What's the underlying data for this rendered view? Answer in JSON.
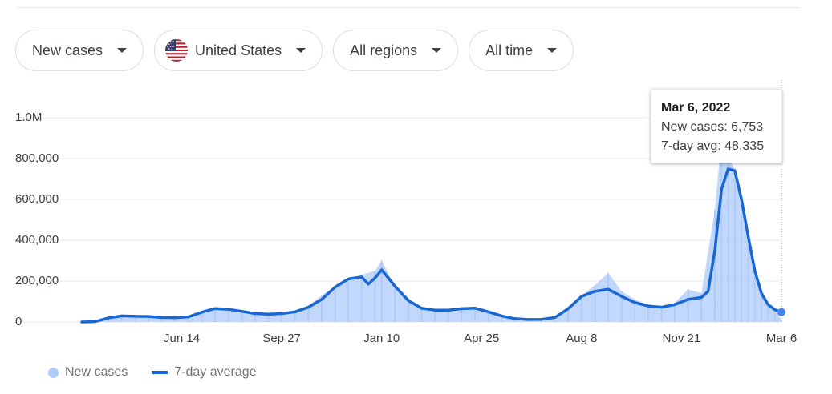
{
  "filters": {
    "metric": "New cases",
    "country": "United States",
    "region": "All regions",
    "period": "All time"
  },
  "colors": {
    "bars": "#aecbfa",
    "line": "#1967d2",
    "grid": "#e8eaed",
    "text": "#3c4043"
  },
  "icons": {
    "country_flag": "us-flag-icon",
    "dropdown": "caret-down-icon"
  },
  "tooltip": {
    "date": "Mar 6, 2022",
    "new_cases": "New cases: 6,753",
    "avg": "7-day avg: 48,335"
  },
  "legend": {
    "bars": "New cases",
    "line": "7-day average"
  },
  "chart_data": {
    "type": "bar",
    "title": "",
    "xlabel": "",
    "ylabel": "",
    "x_start": "2020-03-01",
    "x_end": "2022-03-06",
    "x_ticks": [
      {
        "label": "Jun 14",
        "date": "2020-06-14"
      },
      {
        "label": "Sep 27",
        "date": "2020-09-27"
      },
      {
        "label": "Jan 10",
        "date": "2021-01-10"
      },
      {
        "label": "Apr 25",
        "date": "2021-04-25"
      },
      {
        "label": "Aug 8",
        "date": "2021-08-08"
      },
      {
        "label": "Nov 21",
        "date": "2021-11-21"
      },
      {
        "label": "Mar 6",
        "date": "2022-03-06"
      }
    ],
    "y_ticks": [
      {
        "label": "0",
        "value": 0
      },
      {
        "label": "200,000",
        "value": 200000
      },
      {
        "label": "400,000",
        "value": 400000
      },
      {
        "label": "600,000",
        "value": 600000
      },
      {
        "label": "800,000",
        "value": 800000
      },
      {
        "label": "1.0M",
        "value": 1000000
      }
    ],
    "ylim": [
      0,
      1000000
    ],
    "grid": true,
    "legend_position": "bottom-left",
    "series": [
      {
        "name": "New cases",
        "type": "bar",
        "points": [
          [
            "2020-03-01",
            500
          ],
          [
            "2020-03-15",
            5000
          ],
          [
            "2020-03-29",
            22000
          ],
          [
            "2020-04-12",
            30000
          ],
          [
            "2020-04-26",
            29000
          ],
          [
            "2020-05-10",
            26000
          ],
          [
            "2020-05-24",
            23000
          ],
          [
            "2020-06-07",
            22000
          ],
          [
            "2020-06-21",
            30000
          ],
          [
            "2020-07-05",
            50000
          ],
          [
            "2020-07-19",
            68000
          ],
          [
            "2020-08-02",
            60000
          ],
          [
            "2020-08-16",
            50000
          ],
          [
            "2020-08-30",
            42000
          ],
          [
            "2020-09-13",
            38000
          ],
          [
            "2020-09-27",
            42000
          ],
          [
            "2020-10-11",
            55000
          ],
          [
            "2020-10-25",
            80000
          ],
          [
            "2020-11-08",
            130000
          ],
          [
            "2020-11-22",
            175000
          ],
          [
            "2020-12-06",
            200000
          ],
          [
            "2020-12-20",
            230000
          ],
          [
            "2021-01-03",
            250000
          ],
          [
            "2021-01-10",
            300000
          ],
          [
            "2021-01-24",
            175000
          ],
          [
            "2021-02-07",
            110000
          ],
          [
            "2021-02-21",
            70000
          ],
          [
            "2021-03-07",
            60000
          ],
          [
            "2021-03-21",
            58000
          ],
          [
            "2021-04-04",
            65000
          ],
          [
            "2021-04-18",
            70000
          ],
          [
            "2021-05-02",
            50000
          ],
          [
            "2021-05-16",
            30000
          ],
          [
            "2021-05-30",
            15000
          ],
          [
            "2021-06-13",
            12000
          ],
          [
            "2021-06-27",
            13000
          ],
          [
            "2021-07-11",
            25000
          ],
          [
            "2021-07-25",
            70000
          ],
          [
            "2021-08-08",
            130000
          ],
          [
            "2021-08-22",
            180000
          ],
          [
            "2021-09-05",
            240000
          ],
          [
            "2021-09-19",
            150000
          ],
          [
            "2021-10-03",
            110000
          ],
          [
            "2021-10-17",
            85000
          ],
          [
            "2021-10-31",
            75000
          ],
          [
            "2021-11-14",
            95000
          ],
          [
            "2021-11-28",
            160000
          ],
          [
            "2021-12-12",
            140000
          ],
          [
            "2021-12-26",
            550000
          ],
          [
            "2022-01-02",
            900000
          ],
          [
            "2022-01-09",
            800000
          ],
          [
            "2022-01-16",
            750000
          ],
          [
            "2022-01-23",
            600000
          ],
          [
            "2022-01-30",
            450000
          ],
          [
            "2022-02-06",
            280000
          ],
          [
            "2022-02-13",
            150000
          ],
          [
            "2022-02-20",
            90000
          ],
          [
            "2022-02-27",
            70000
          ],
          [
            "2022-03-06",
            6753
          ]
        ]
      },
      {
        "name": "7-day average",
        "type": "line",
        "points": [
          [
            "2020-03-01",
            0
          ],
          [
            "2020-03-15",
            2000
          ],
          [
            "2020-03-29",
            20000
          ],
          [
            "2020-04-12",
            30000
          ],
          [
            "2020-04-26",
            28000
          ],
          [
            "2020-05-10",
            27000
          ],
          [
            "2020-05-24",
            22000
          ],
          [
            "2020-06-07",
            21000
          ],
          [
            "2020-06-21",
            25000
          ],
          [
            "2020-07-05",
            48000
          ],
          [
            "2020-07-19",
            66000
          ],
          [
            "2020-08-02",
            62000
          ],
          [
            "2020-08-16",
            52000
          ],
          [
            "2020-08-30",
            41000
          ],
          [
            "2020-09-13",
            38000
          ],
          [
            "2020-09-27",
            41000
          ],
          [
            "2020-10-11",
            50000
          ],
          [
            "2020-10-25",
            72000
          ],
          [
            "2020-11-08",
            110000
          ],
          [
            "2020-11-22",
            170000
          ],
          [
            "2020-12-06",
            210000
          ],
          [
            "2020-12-20",
            220000
          ],
          [
            "2020-12-27",
            185000
          ],
          [
            "2021-01-03",
            215000
          ],
          [
            "2021-01-10",
            255000
          ],
          [
            "2021-01-24",
            175000
          ],
          [
            "2021-02-07",
            105000
          ],
          [
            "2021-02-21",
            67000
          ],
          [
            "2021-03-07",
            58000
          ],
          [
            "2021-03-21",
            58000
          ],
          [
            "2021-04-04",
            65000
          ],
          [
            "2021-04-18",
            68000
          ],
          [
            "2021-05-02",
            50000
          ],
          [
            "2021-05-16",
            30000
          ],
          [
            "2021-05-30",
            16000
          ],
          [
            "2021-06-13",
            12000
          ],
          [
            "2021-06-27",
            13000
          ],
          [
            "2021-07-11",
            22000
          ],
          [
            "2021-07-25",
            65000
          ],
          [
            "2021-08-08",
            125000
          ],
          [
            "2021-08-22",
            150000
          ],
          [
            "2021-09-05",
            160000
          ],
          [
            "2021-09-19",
            125000
          ],
          [
            "2021-10-03",
            95000
          ],
          [
            "2021-10-17",
            78000
          ],
          [
            "2021-10-31",
            72000
          ],
          [
            "2021-11-14",
            85000
          ],
          [
            "2021-11-28",
            110000
          ],
          [
            "2021-12-12",
            120000
          ],
          [
            "2021-12-19",
            150000
          ],
          [
            "2021-12-26",
            350000
          ],
          [
            "2022-01-02",
            650000
          ],
          [
            "2022-01-09",
            750000
          ],
          [
            "2022-01-16",
            740000
          ],
          [
            "2022-01-23",
            600000
          ],
          [
            "2022-01-30",
            420000
          ],
          [
            "2022-02-06",
            250000
          ],
          [
            "2022-02-13",
            140000
          ],
          [
            "2022-02-20",
            85000
          ],
          [
            "2022-02-27",
            60000
          ],
          [
            "2022-03-06",
            48335
          ]
        ]
      }
    ],
    "highlight": {
      "date": "2022-03-06",
      "value": 48335
    }
  }
}
